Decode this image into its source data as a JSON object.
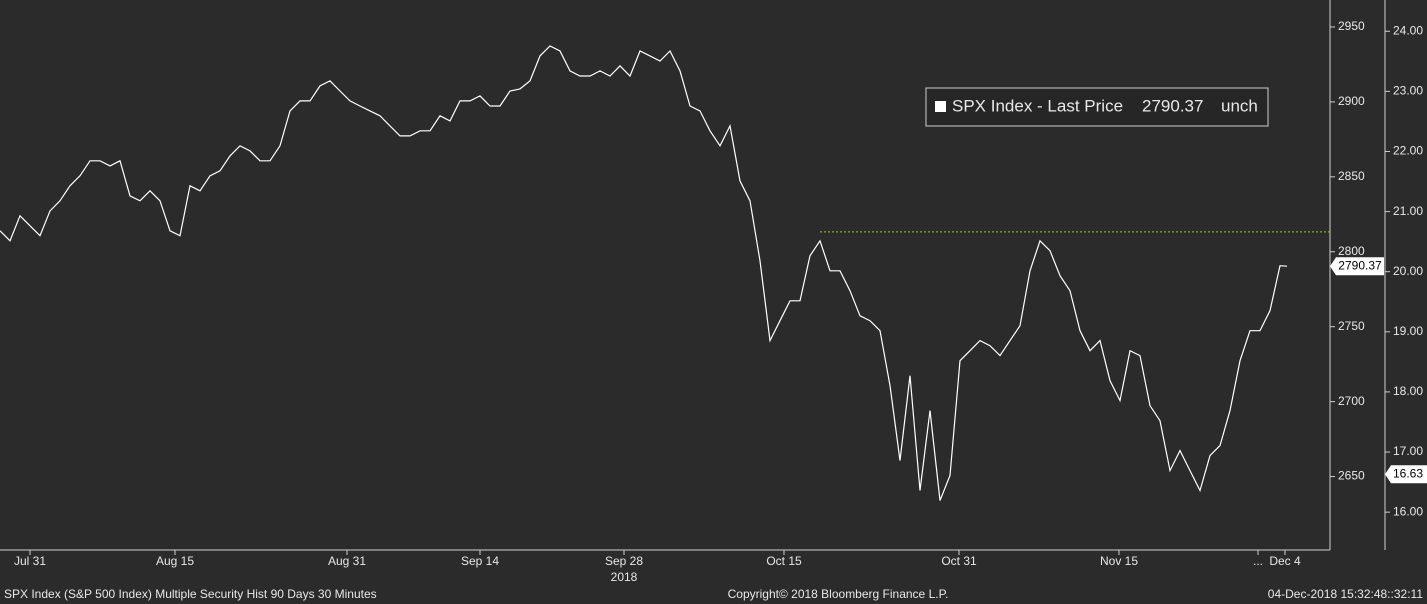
{
  "chart_data": {
    "type": "line",
    "series": [
      {
        "name": "SPX Index - Last Price",
        "color": "#ffffff",
        "values": [
          2814,
          2807.3,
          2824,
          2817.3,
          2810.7,
          2827.3,
          2834,
          2844,
          2850.7,
          2860.7,
          2860.7,
          2857.3,
          2860.7,
          2837.3,
          2834,
          2840.7,
          2834,
          2814,
          2810.7,
          2844,
          2840.7,
          2850.7,
          2854,
          2864,
          2870.7,
          2867.3,
          2860.7,
          2860.7,
          2870.7,
          2894,
          2900.7,
          2900.7,
          2910.7,
          2914,
          2907.3,
          2900.7,
          2897.3,
          2894,
          2890.7,
          2884,
          2877.3,
          2877.3,
          2880.7,
          2880.7,
          2890.7,
          2887.3,
          2900.7,
          2900.7,
          2904,
          2897.3,
          2897.3,
          2907.3,
          2908.7,
          2914,
          2930.7,
          2937.3,
          2934,
          2920.7,
          2917.3,
          2917.3,
          2920.7,
          2917.3,
          2924,
          2917.3,
          2934,
          2930.7,
          2927.3,
          2934,
          2920.7,
          2897.3,
          2894,
          2880.7,
          2870.7,
          2884,
          2847.3,
          2834,
          2794,
          2740.7,
          2754,
          2767.3,
          2767.3,
          2797.3,
          2807.3,
          2787.3,
          2787.3,
          2774,
          2757.3,
          2754,
          2747.3,
          2710.7,
          2660.7,
          2717.3,
          2640.7,
          2694,
          2634,
          2650.7,
          2727.3,
          2734,
          2740.7,
          2737.3,
          2730.7,
          2740.7,
          2750.7,
          2787.3,
          2807.3,
          2800.7,
          2784,
          2774,
          2747.3,
          2734,
          2740.7,
          2714,
          2700.7,
          2734,
          2730.7,
          2697.3,
          2687.3,
          2654,
          2667.3,
          2654,
          2640.7,
          2664,
          2670.7,
          2694,
          2727.3,
          2747.3,
          2747.3,
          2760.7,
          2790.7,
          2790.37
        ]
      }
    ],
    "x": [
      0,
      1,
      2,
      3,
      4,
      5,
      6,
      7,
      8,
      9,
      10,
      11,
      12,
      13,
      14,
      15,
      16,
      17,
      18,
      19,
      20,
      21,
      22,
      23,
      24,
      25,
      26,
      27,
      28,
      29,
      30,
      31,
      32,
      33,
      34,
      35,
      36,
      37,
      38,
      39,
      40,
      41,
      42,
      43,
      44,
      45,
      46,
      47,
      48,
      49,
      50,
      51,
      52,
      53,
      54,
      55,
      56,
      57,
      58,
      59,
      60,
      61,
      62,
      63,
      64,
      65,
      66,
      67,
      68,
      69,
      70,
      71,
      72,
      73,
      74,
      75,
      76,
      77,
      78,
      79,
      80,
      81,
      82,
      83,
      84,
      85,
      86,
      87,
      88,
      89,
      90,
      91,
      92,
      93,
      94,
      95,
      96,
      97,
      98,
      99,
      100,
      101,
      102,
      103,
      104,
      105,
      106,
      107,
      108,
      109,
      110,
      111,
      112,
      113,
      114,
      115,
      116,
      117,
      118,
      119,
      120,
      121,
      122,
      123,
      124,
      125,
      126,
      127,
      128,
      128.7
    ],
    "xlim": [
      0,
      133
    ],
    "xticks": [
      {
        "value": 3,
        "label": "Jul 31"
      },
      {
        "value": 17.5,
        "label": "Aug 15"
      },
      {
        "value": 34.7,
        "label": "Aug 31"
      },
      {
        "value": 48,
        "label": "Sep 14"
      },
      {
        "value": 62.4,
        "label": "Sep 28"
      },
      {
        "value": 78.4,
        "label": "Oct 15"
      },
      {
        "value": 95.9,
        "label": "Oct 31"
      },
      {
        "value": 111.9,
        "label": "Nov 15"
      },
      {
        "value": 125.8,
        "label": "..."
      },
      {
        "value": 128.5,
        "label": "Dec 4"
      }
    ],
    "x_year_label": "2018",
    "ylim": [
      2601,
      2968
    ],
    "yticks": [
      2650,
      2700,
      2750,
      2800,
      2850,
      2900,
      2950
    ],
    "y2lim": [
      15.37,
      24.52
    ],
    "y2ticks": [
      {
        "value": 16,
        "label": "16.00"
      },
      {
        "value": 17,
        "label": "17.00"
      },
      {
        "value": 18,
        "label": "18.00"
      },
      {
        "value": 19,
        "label": "19.00"
      },
      {
        "value": 20,
        "label": "20.00"
      },
      {
        "value": 21,
        "label": "21.00"
      },
      {
        "value": 22,
        "label": "22.00"
      },
      {
        "value": 23,
        "label": "23.00"
      },
      {
        "value": 24,
        "label": "24.00"
      }
    ],
    "last_price": 2790.37,
    "change": "unch",
    "y2_marker": 16.63,
    "reference_line": {
      "value": 2813.3,
      "from_x": 82,
      "color": "#9acd32"
    },
    "grid": false
  },
  "footer": {
    "left": "SPX Index (S&P 500 Index) Multiple Security Hist   90 Days 30 Minutes",
    "center": "Copyright© 2018 Bloomberg Finance L.P.",
    "right": "04-Dec-2018 15:32:48::32:11"
  }
}
